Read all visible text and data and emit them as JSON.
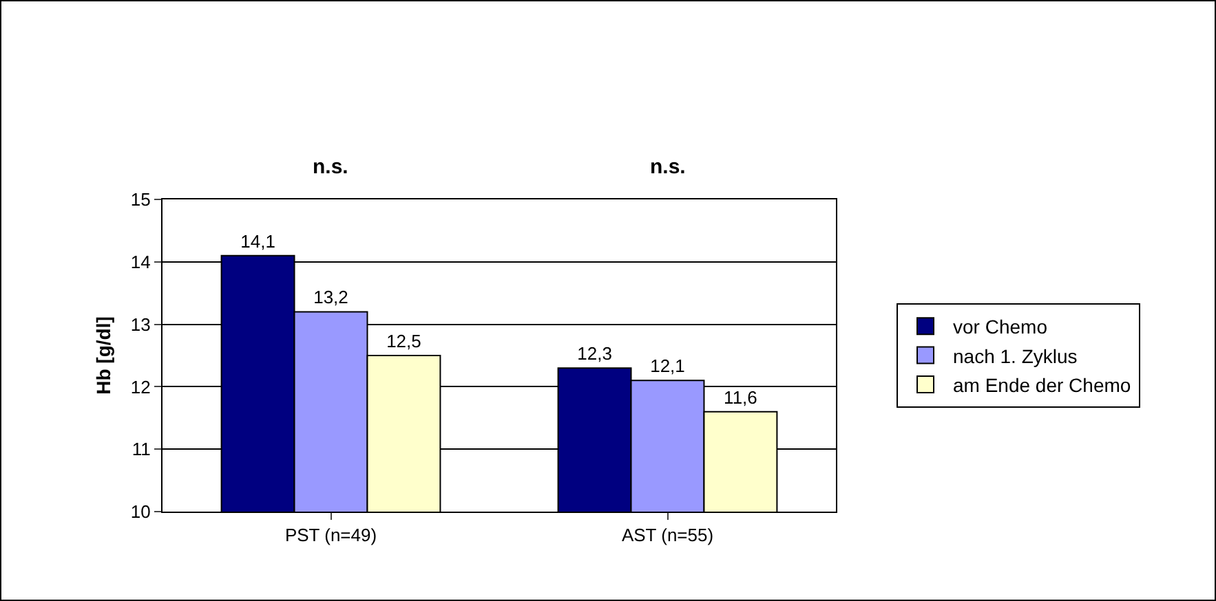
{
  "chart_data": {
    "type": "bar",
    "ylabel": "Hb [g/dl]",
    "categories": [
      "PST (n=49)",
      "AST (n=55)"
    ],
    "series": [
      {
        "name": "vor Chemo",
        "color": "#000080",
        "values": [
          14.1,
          12.3
        ],
        "value_labels": [
          "14,1",
          "12,3"
        ]
      },
      {
        "name": "nach 1. Zyklus",
        "color": "#9999ff",
        "values": [
          13.2,
          12.1
        ],
        "value_labels": [
          "13,2",
          "12,1"
        ]
      },
      {
        "name": "am Ende der Chemo",
        "color": "#ffffcc",
        "values": [
          12.5,
          11.6
        ],
        "value_labels": [
          "12,5",
          "11,6"
        ]
      }
    ],
    "ylim": [
      10,
      15
    ],
    "yticks": [
      10,
      11,
      12,
      13,
      14,
      15
    ],
    "grid": "y",
    "legend": "right",
    "annotations": [
      "n.s.",
      "n.s."
    ]
  }
}
